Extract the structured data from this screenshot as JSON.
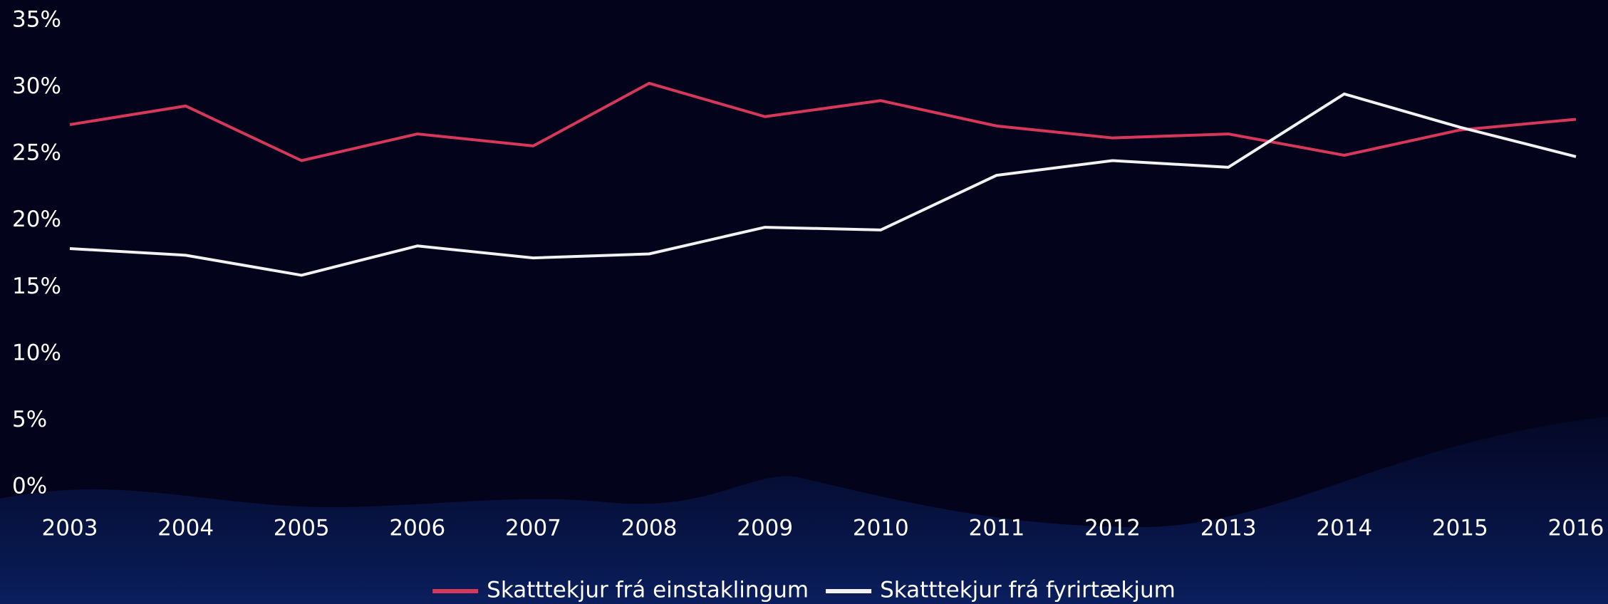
{
  "chart_data": {
    "type": "line",
    "categories": [
      "2003",
      "2004",
      "2005",
      "2006",
      "2007",
      "2008",
      "2009",
      "2010",
      "2011",
      "2012",
      "2013",
      "2014",
      "2015",
      "2016"
    ],
    "series": [
      {
        "name": "Skatttekjur frá einstaklingum",
        "color": "#d6375a",
        "values": [
          27.2,
          28.6,
          24.5,
          26.5,
          25.6,
          30.3,
          27.8,
          29.0,
          27.1,
          26.2,
          26.5,
          24.9,
          26.8,
          27.6
        ]
      },
      {
        "name": "Skatttekjur frá fyrirtækjum",
        "color": "#f2f2f2",
        "values": [
          17.9,
          17.4,
          15.9,
          18.1,
          17.2,
          17.5,
          19.5,
          19.3,
          23.4,
          24.5,
          24.0,
          29.5,
          27.0,
          24.8
        ]
      }
    ],
    "ylim": [
      0,
      35
    ],
    "yticks": [
      {
        "value": 0,
        "label": "0%"
      },
      {
        "value": 5,
        "label": "5%"
      },
      {
        "value": 10,
        "label": "10%"
      },
      {
        "value": 15,
        "label": "15%"
      },
      {
        "value": 20,
        "label": "20%"
      },
      {
        "value": 25,
        "label": "25%"
      },
      {
        "value": 30,
        "label": "30%"
      },
      {
        "value": 35,
        "label": "35%"
      }
    ],
    "grid": false,
    "legend": "bottom"
  }
}
